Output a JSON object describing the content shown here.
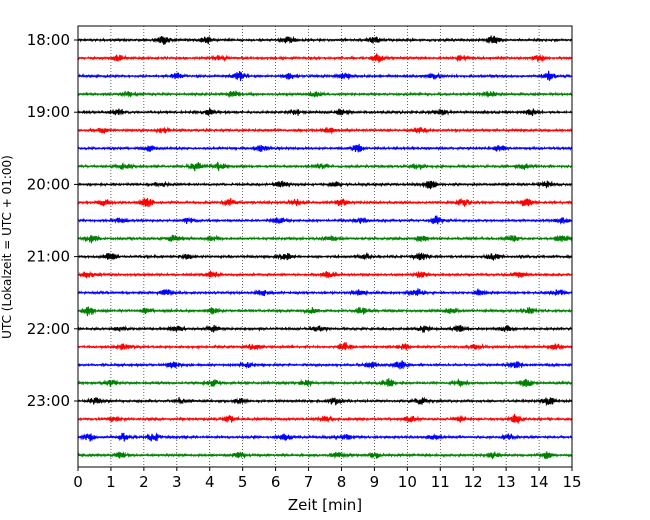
{
  "chart_data": {
    "type": "line",
    "subtype": "helicorder",
    "xlabel": "Zeit  [min]",
    "ylabel": "UTC (Lokalzeit = UTC + 01:00)",
    "xlim": [
      0,
      15
    ],
    "x_ticks": [
      0,
      1,
      2,
      3,
      4,
      5,
      6,
      7,
      8,
      9,
      10,
      11,
      12,
      13,
      14,
      15
    ],
    "x_tick_labels": [
      "0",
      "1",
      "2",
      "3",
      "4",
      "5",
      "6",
      "7",
      "8",
      "9",
      "10",
      "11",
      "12",
      "13",
      "14",
      "15"
    ],
    "y_tick_labels": [
      "18:00",
      "19:00",
      "20:00",
      "21:00",
      "22:00",
      "23:00"
    ],
    "minutes_per_line": 15,
    "lines_per_hour": 4,
    "vertical_grid": "dotted",
    "trace_colors": [
      "#000000",
      "#ff0000",
      "#0000ff",
      "#008000"
    ],
    "series": [
      {
        "start": "18:00",
        "bursts": [
          {
            "t": 2.6,
            "a": 0.9
          },
          {
            "t": 3.9,
            "a": 0.8
          },
          {
            "t": 6.4,
            "a": 0.8
          },
          {
            "t": 9.0,
            "a": 0.7
          },
          {
            "t": 12.6,
            "a": 0.9
          }
        ]
      },
      {
        "start": "18:15",
        "bursts": [
          {
            "t": 1.2,
            "a": 0.6
          },
          {
            "t": 4.3,
            "a": 0.6
          },
          {
            "t": 9.1,
            "a": 0.9
          },
          {
            "t": 11.6,
            "a": 0.6
          },
          {
            "t": 14.0,
            "a": 0.6
          }
        ]
      },
      {
        "start": "18:30",
        "bursts": [
          {
            "t": 3.0,
            "a": 0.6
          },
          {
            "t": 4.9,
            "a": 0.9
          },
          {
            "t": 6.4,
            "a": 0.7
          },
          {
            "t": 8.1,
            "a": 0.7
          },
          {
            "t": 10.8,
            "a": 0.6
          },
          {
            "t": 14.3,
            "a": 0.9
          }
        ]
      },
      {
        "start": "18:45",
        "bursts": [
          {
            "t": 1.5,
            "a": 0.5
          },
          {
            "t": 4.7,
            "a": 0.6
          },
          {
            "t": 7.2,
            "a": 0.5
          },
          {
            "t": 12.5,
            "a": 0.6
          }
        ]
      },
      {
        "start": "19:00",
        "bursts": [
          {
            "t": 1.2,
            "a": 0.8
          },
          {
            "t": 4.0,
            "a": 0.8
          },
          {
            "t": 6.6,
            "a": 0.7
          },
          {
            "t": 8.0,
            "a": 0.7
          },
          {
            "t": 11.0,
            "a": 0.7
          },
          {
            "t": 13.8,
            "a": 0.8
          }
        ]
      },
      {
        "start": "19:15",
        "bursts": [
          {
            "t": 0.7,
            "a": 0.5
          },
          {
            "t": 2.6,
            "a": 0.6
          },
          {
            "t": 7.6,
            "a": 0.6
          },
          {
            "t": 10.4,
            "a": 0.6
          }
        ]
      },
      {
        "start": "19:30",
        "bursts": [
          {
            "t": 2.2,
            "a": 0.6
          },
          {
            "t": 5.6,
            "a": 0.6
          },
          {
            "t": 8.5,
            "a": 0.9
          },
          {
            "t": 12.8,
            "a": 0.6
          }
        ]
      },
      {
        "start": "19:45",
        "bursts": [
          {
            "t": 1.4,
            "a": 0.6
          },
          {
            "t": 3.6,
            "a": 1.0
          },
          {
            "t": 4.3,
            "a": 0.9
          },
          {
            "t": 7.4,
            "a": 0.6
          },
          {
            "t": 10.3,
            "a": 0.6
          },
          {
            "t": 13.5,
            "a": 0.6
          }
        ]
      },
      {
        "start": "20:00",
        "bursts": [
          {
            "t": 2.5,
            "a": 0.6
          },
          {
            "t": 6.2,
            "a": 0.6
          },
          {
            "t": 7.8,
            "a": 0.6
          },
          {
            "t": 10.7,
            "a": 1.0
          },
          {
            "t": 14.2,
            "a": 0.8
          }
        ]
      },
      {
        "start": "20:15",
        "bursts": [
          {
            "t": 0.8,
            "a": 0.8
          },
          {
            "t": 2.1,
            "a": 1.0
          },
          {
            "t": 4.6,
            "a": 0.8
          },
          {
            "t": 6.6,
            "a": 0.6
          },
          {
            "t": 8.0,
            "a": 0.8
          },
          {
            "t": 11.7,
            "a": 0.8
          },
          {
            "t": 13.6,
            "a": 0.8
          }
        ]
      },
      {
        "start": "20:30",
        "bursts": [
          {
            "t": 1.3,
            "a": 0.6
          },
          {
            "t": 3.4,
            "a": 0.7
          },
          {
            "t": 6.1,
            "a": 0.6
          },
          {
            "t": 8.6,
            "a": 0.6
          },
          {
            "t": 10.9,
            "a": 0.9
          },
          {
            "t": 14.7,
            "a": 0.6
          }
        ]
      },
      {
        "start": "20:45",
        "bursts": [
          {
            "t": 0.4,
            "a": 0.8
          },
          {
            "t": 2.9,
            "a": 0.6
          },
          {
            "t": 4.1,
            "a": 0.6
          },
          {
            "t": 7.7,
            "a": 0.6
          },
          {
            "t": 10.4,
            "a": 0.6
          },
          {
            "t": 13.2,
            "a": 0.6
          },
          {
            "t": 14.7,
            "a": 0.8
          }
        ]
      },
      {
        "start": "21:00",
        "bursts": [
          {
            "t": 1.0,
            "a": 0.8
          },
          {
            "t": 3.3,
            "a": 0.6
          },
          {
            "t": 6.3,
            "a": 0.9
          },
          {
            "t": 8.7,
            "a": 0.6
          },
          {
            "t": 10.4,
            "a": 0.7
          },
          {
            "t": 12.6,
            "a": 0.7
          }
        ]
      },
      {
        "start": "21:15",
        "bursts": [
          {
            "t": 0.3,
            "a": 0.6
          },
          {
            "t": 4.1,
            "a": 0.8
          },
          {
            "t": 7.6,
            "a": 0.6
          },
          {
            "t": 10.4,
            "a": 0.6
          },
          {
            "t": 13.4,
            "a": 0.6
          }
        ]
      },
      {
        "start": "21:30",
        "bursts": [
          {
            "t": 2.7,
            "a": 0.6
          },
          {
            "t": 5.6,
            "a": 0.6
          },
          {
            "t": 8.5,
            "a": 0.6
          },
          {
            "t": 10.3,
            "a": 1.0
          },
          {
            "t": 12.2,
            "a": 0.6
          },
          {
            "t": 14.6,
            "a": 0.6
          }
        ]
      },
      {
        "start": "21:45",
        "bursts": [
          {
            "t": 0.3,
            "a": 1.0
          },
          {
            "t": 2.1,
            "a": 0.6
          },
          {
            "t": 4.1,
            "a": 0.6
          },
          {
            "t": 7.1,
            "a": 0.6
          },
          {
            "t": 8.6,
            "a": 0.8
          },
          {
            "t": 11.3,
            "a": 0.6
          },
          {
            "t": 13.7,
            "a": 0.6
          }
        ]
      },
      {
        "start": "22:00",
        "bursts": [
          {
            "t": 1.3,
            "a": 0.6
          },
          {
            "t": 3.0,
            "a": 0.6
          },
          {
            "t": 4.1,
            "a": 0.8
          },
          {
            "t": 7.3,
            "a": 0.6
          },
          {
            "t": 10.5,
            "a": 0.6
          },
          {
            "t": 11.6,
            "a": 0.7
          },
          {
            "t": 13.0,
            "a": 0.6
          }
        ]
      },
      {
        "start": "22:15",
        "bursts": [
          {
            "t": 1.4,
            "a": 0.6
          },
          {
            "t": 5.3,
            "a": 0.6
          },
          {
            "t": 8.1,
            "a": 0.9
          },
          {
            "t": 9.9,
            "a": 0.6
          },
          {
            "t": 12.1,
            "a": 0.6
          },
          {
            "t": 14.5,
            "a": 0.6
          }
        ]
      },
      {
        "start": "22:30",
        "bursts": [
          {
            "t": 2.9,
            "a": 0.6
          },
          {
            "t": 5.1,
            "a": 0.6
          },
          {
            "t": 8.9,
            "a": 0.6
          },
          {
            "t": 9.8,
            "a": 0.9
          },
          {
            "t": 13.3,
            "a": 0.6
          }
        ]
      },
      {
        "start": "22:45",
        "bursts": [
          {
            "t": 1.0,
            "a": 0.6
          },
          {
            "t": 4.1,
            "a": 0.6
          },
          {
            "t": 6.9,
            "a": 0.6
          },
          {
            "t": 9.4,
            "a": 0.9
          },
          {
            "t": 11.6,
            "a": 0.6
          },
          {
            "t": 13.6,
            "a": 0.9
          }
        ]
      },
      {
        "start": "23:00",
        "bursts": [
          {
            "t": 0.5,
            "a": 0.6
          },
          {
            "t": 3.1,
            "a": 0.6
          },
          {
            "t": 4.9,
            "a": 0.6
          },
          {
            "t": 7.8,
            "a": 0.7
          },
          {
            "t": 10.4,
            "a": 0.8
          },
          {
            "t": 14.3,
            "a": 1.0
          }
        ]
      },
      {
        "start": "23:15",
        "bursts": [
          {
            "t": 1.1,
            "a": 0.6
          },
          {
            "t": 4.6,
            "a": 0.6
          },
          {
            "t": 7.5,
            "a": 0.6
          },
          {
            "t": 10.1,
            "a": 0.6
          },
          {
            "t": 11.6,
            "a": 0.6
          },
          {
            "t": 13.3,
            "a": 1.0
          }
        ]
      },
      {
        "start": "23:30",
        "bursts": [
          {
            "t": 0.3,
            "a": 1.0
          },
          {
            "t": 1.4,
            "a": 0.9
          },
          {
            "t": 2.3,
            "a": 0.9
          },
          {
            "t": 6.3,
            "a": 0.7
          },
          {
            "t": 8.1,
            "a": 0.6
          },
          {
            "t": 10.8,
            "a": 0.6
          },
          {
            "t": 13.1,
            "a": 0.6
          }
        ]
      },
      {
        "start": "23:45",
        "bursts": [
          {
            "t": 1.3,
            "a": 0.6
          },
          {
            "t": 4.9,
            "a": 0.6
          },
          {
            "t": 7.9,
            "a": 0.6
          },
          {
            "t": 9.0,
            "a": 0.6
          },
          {
            "t": 12.6,
            "a": 0.6
          },
          {
            "t": 14.2,
            "a": 0.7
          }
        ]
      }
    ]
  }
}
